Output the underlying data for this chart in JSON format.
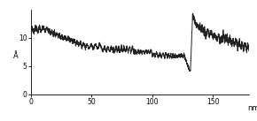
{
  "title": "",
  "xlabel": "nm",
  "ylabel": "Å",
  "xlim": [
    0,
    180
  ],
  "ylim": [
    0,
    15
  ],
  "yticks": [
    0,
    5,
    10
  ],
  "xticks": [
    0,
    50,
    100,
    150
  ],
  "background_color": "#ffffff",
  "line_color": "#222222",
  "line_width": 0.7,
  "figsize": [
    2.9,
    1.37
  ],
  "dpi": 100
}
